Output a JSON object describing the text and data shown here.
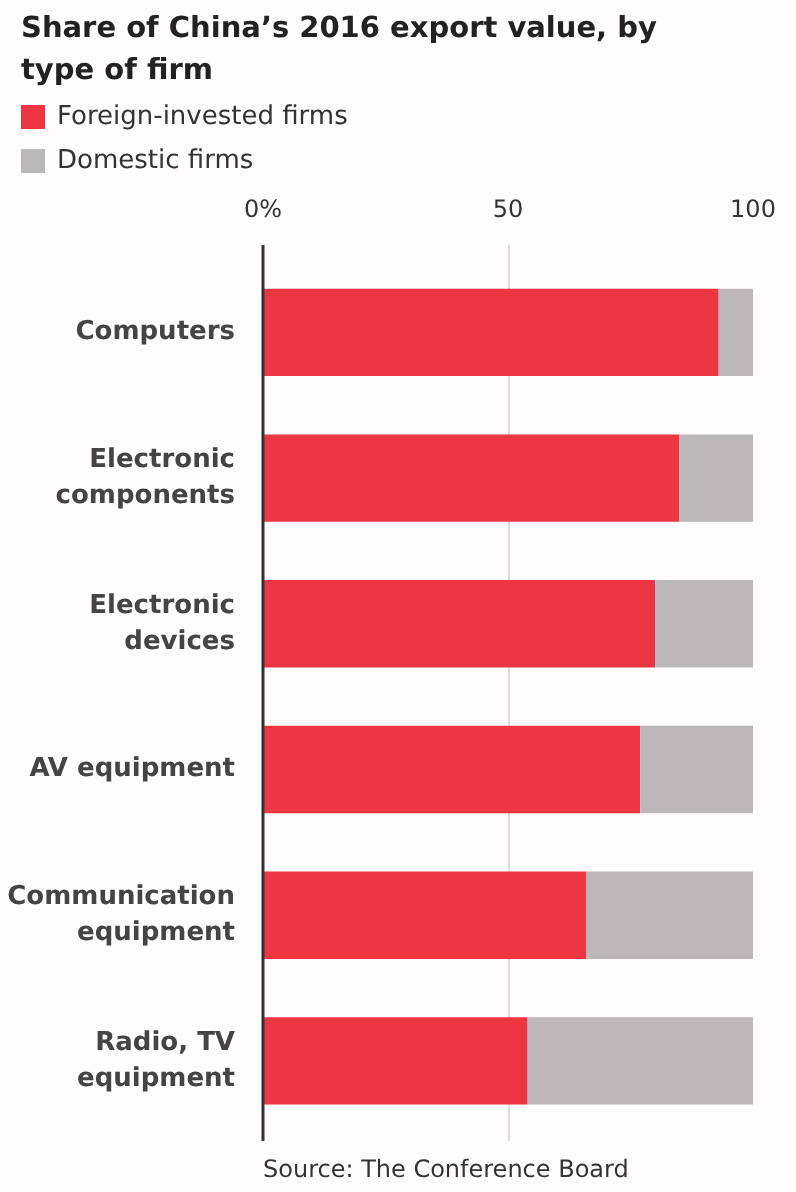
{
  "chart_data": {
    "type": "bar",
    "orientation": "horizontal",
    "stacked": true,
    "title": "Share of China’s 2016 export value, by type of firm",
    "categories": [
      "Computers",
      "Electronic components",
      "Electronic devices",
      "AV equipment",
      "Communication equipment",
      "Radio, TV equipment"
    ],
    "series": [
      {
        "name": "Foreign-invested firms",
        "color": "#ee3542",
        "values": [
          93,
          85,
          80,
          77,
          66,
          54
        ]
      },
      {
        "name": "Domestic firms",
        "color": "#bcb8b9",
        "values": [
          7,
          15,
          20,
          23,
          34,
          46
        ]
      }
    ],
    "xlim": [
      0,
      100
    ],
    "xticks": [
      {
        "value": 0,
        "label": "0%"
      },
      50,
      100
    ],
    "grid": "x",
    "legend": "top left",
    "annotations": [
      "Source: The Conference Board"
    ]
  }
}
